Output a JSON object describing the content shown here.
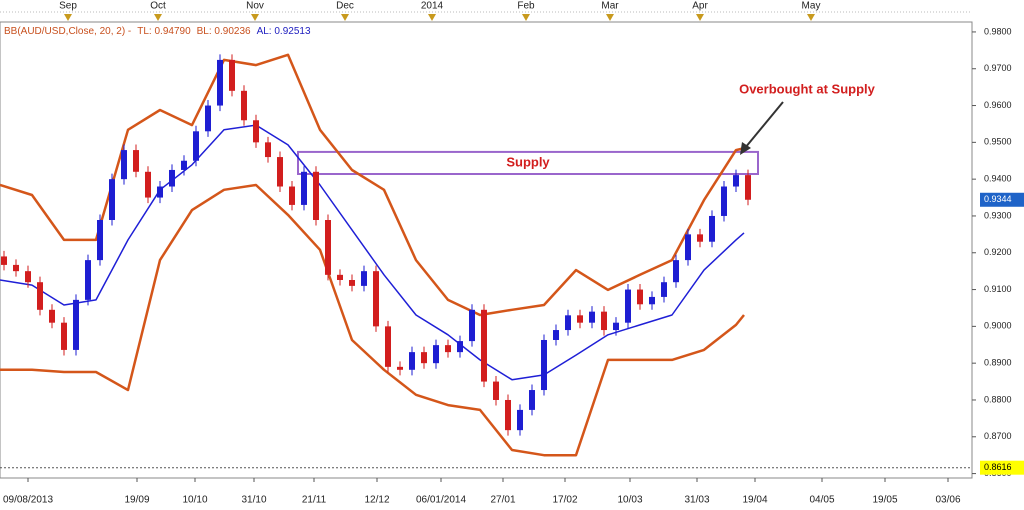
{
  "chart_data": {
    "type": "candlestick",
    "header": [
      {
        "text": "BB(AUD/USD,Close, 20, 2) -",
        "color": "#c8501e"
      },
      {
        "text": "TL: 0.94790",
        "color": "#c8501e"
      },
      {
        "text": "BL: 0.90236",
        "color": "#c8501e"
      },
      {
        "text": "AL: 0.92513",
        "color": "#2020c0"
      }
    ],
    "xlim": [
      0,
      243
    ],
    "ylim": [
      0.8588,
      0.9827
    ],
    "yticks": [
      {
        "value": 0.98,
        "label": "0.9800"
      },
      {
        "value": 0.97,
        "label": "0.9700"
      },
      {
        "value": 0.96,
        "label": "0.9600"
      },
      {
        "value": 0.95,
        "label": "0.9500"
      },
      {
        "value": 0.94,
        "label": "0.9400"
      },
      {
        "value": 0.93,
        "label": "0.9300"
      },
      {
        "value": 0.92,
        "label": "0.9200"
      },
      {
        "value": 0.91,
        "label": "0.9100"
      },
      {
        "value": 0.9,
        "label": "0.9000"
      },
      {
        "value": 0.89,
        "label": "0.8900"
      },
      {
        "value": 0.88,
        "label": "0.8800"
      },
      {
        "value": 0.87,
        "label": "0.8700"
      },
      {
        "value": 0.86,
        "label": "0.8600"
      }
    ],
    "xticks": [
      {
        "value": 7,
        "label": "09/08/2013"
      },
      {
        "value": 34.25,
        "label": "19/09"
      },
      {
        "value": 48.75,
        "label": "10/10"
      },
      {
        "value": 63.5,
        "label": "31/10"
      },
      {
        "value": 78.5,
        "label": "21/11"
      },
      {
        "value": 94.25,
        "label": "12/12"
      },
      {
        "value": 110.25,
        "label": "06/01/2014"
      },
      {
        "value": 125.75,
        "label": "27/01"
      },
      {
        "value": 141.25,
        "label": "17/02"
      },
      {
        "value": 157.5,
        "label": "10/03"
      },
      {
        "value": 174.25,
        "label": "31/03"
      },
      {
        "value": 188.75,
        "label": "19/04"
      },
      {
        "value": 205.5,
        "label": "04/05"
      },
      {
        "value": 221.25,
        "label": "19/05"
      },
      {
        "value": 237,
        "label": "03/06"
      }
    ],
    "top_ticks": [
      {
        "value": 17,
        "label": "Sep"
      },
      {
        "value": 39.5,
        "label": "Oct"
      },
      {
        "value": 63.75,
        "label": "Nov"
      },
      {
        "value": 86.25,
        "label": "Dec"
      },
      {
        "value": 108,
        "label": "2014"
      },
      {
        "value": 131.5,
        "label": "Feb"
      },
      {
        "value": 152.5,
        "label": "Mar"
      },
      {
        "value": 175,
        "label": "Apr"
      },
      {
        "value": 202.75,
        "label": "May"
      }
    ],
    "up_color": "#1e1ed2",
    "down_color": "#d21e1e",
    "x": [
      1,
      4,
      7,
      10,
      13,
      16,
      19,
      22,
      25,
      28,
      31,
      34,
      37,
      40,
      43,
      46,
      49,
      52,
      55,
      58,
      61,
      64,
      67,
      70,
      73,
      76,
      79,
      82,
      85,
      88,
      91,
      94,
      97,
      100,
      103,
      106,
      109,
      112,
      115,
      118,
      121,
      124,
      127,
      130,
      133,
      136,
      139,
      142,
      145,
      148,
      151,
      154,
      157,
      160,
      163,
      166,
      169,
      172,
      175,
      178,
      181,
      184,
      187
    ],
    "open": [
      0.919,
      0.9167,
      0.915,
      0.912,
      0.9045,
      0.901,
      0.8936,
      0.9072,
      0.918,
      0.9289,
      0.94,
      0.9479,
      0.942,
      0.935,
      0.938,
      0.9425,
      0.945,
      0.953,
      0.96,
      0.9724,
      0.964,
      0.956,
      0.95,
      0.946,
      0.938,
      0.933,
      0.942,
      0.9289,
      0.914,
      0.9126,
      0.911,
      0.915,
      0.9,
      0.889,
      0.8882,
      0.893,
      0.89,
      0.8949,
      0.893,
      0.896,
      0.9045,
      0.885,
      0.88,
      0.8718,
      0.8773,
      0.8827,
      0.8963,
      0.899,
      0.903,
      0.901,
      0.904,
      0.899,
      0.901,
      0.91,
      0.906,
      0.908,
      0.912,
      0.918,
      0.925,
      0.923,
      0.93,
      0.938,
      0.9411
    ],
    "high": [
      0.9205,
      0.9182,
      0.9165,
      0.9135,
      0.906,
      0.9025,
      0.9087,
      0.9195,
      0.9304,
      0.9415,
      0.9494,
      0.9494,
      0.9435,
      0.9395,
      0.944,
      0.9465,
      0.9545,
      0.9615,
      0.9739,
      0.9739,
      0.9655,
      0.9575,
      0.9515,
      0.9475,
      0.9395,
      0.9435,
      0.9435,
      0.9304,
      0.9155,
      0.9141,
      0.9165,
      0.9165,
      0.9015,
      0.8905,
      0.8945,
      0.8945,
      0.8964,
      0.8964,
      0.8975,
      0.906,
      0.906,
      0.8865,
      0.8815,
      0.8788,
      0.8842,
      0.8978,
      0.9005,
      0.9045,
      0.9045,
      0.9055,
      0.9055,
      0.9025,
      0.9115,
      0.9115,
      0.9095,
      0.9135,
      0.9195,
      0.9265,
      0.9265,
      0.9315,
      0.9395,
      0.9426,
      0.9426
    ],
    "low": [
      0.9152,
      0.9135,
      0.9105,
      0.903,
      0.8995,
      0.8921,
      0.8921,
      0.9057,
      0.9165,
      0.9274,
      0.9385,
      0.9405,
      0.9335,
      0.9335,
      0.9365,
      0.941,
      0.9435,
      0.9515,
      0.9585,
      0.9625,
      0.9545,
      0.9485,
      0.9445,
      0.9365,
      0.9315,
      0.9315,
      0.9274,
      0.9125,
      0.9111,
      0.9095,
      0.9095,
      0.8985,
      0.8875,
      0.8867,
      0.8867,
      0.8885,
      0.8885,
      0.8915,
      0.8915,
      0.8945,
      0.8835,
      0.8785,
      0.8703,
      0.8703,
      0.8758,
      0.8812,
      0.8948,
      0.8975,
      0.8995,
      0.8995,
      0.8975,
      0.8975,
      0.8995,
      0.9045,
      0.9045,
      0.9065,
      0.9105,
      0.9165,
      0.9215,
      0.9215,
      0.9285,
      0.9365,
      0.9329
    ],
    "close": [
      0.9167,
      0.915,
      0.912,
      0.9045,
      0.901,
      0.8936,
      0.9072,
      0.918,
      0.9289,
      0.94,
      0.9479,
      0.942,
      0.935,
      0.938,
      0.9425,
      0.945,
      0.953,
      0.96,
      0.9724,
      0.964,
      0.956,
      0.95,
      0.946,
      0.938,
      0.933,
      0.942,
      0.9289,
      0.914,
      0.9126,
      0.911,
      0.915,
      0.9,
      0.889,
      0.8882,
      0.893,
      0.89,
      0.8949,
      0.893,
      0.896,
      0.9045,
      0.885,
      0.88,
      0.8718,
      0.8773,
      0.8827,
      0.8963,
      0.899,
      0.903,
      0.901,
      0.904,
      0.899,
      0.901,
      0.91,
      0.906,
      0.908,
      0.912,
      0.918,
      0.925,
      0.923,
      0.93,
      0.938,
      0.9411,
      0.9344
    ],
    "bands": {
      "x": [
        0,
        8,
        16,
        24,
        32,
        40,
        48,
        56,
        64,
        72,
        80,
        88,
        96,
        104,
        112,
        120,
        128,
        136,
        144,
        152,
        160,
        168,
        176,
        184,
        186
      ],
      "upper": [
        0.9384,
        0.9357,
        0.9235,
        0.9235,
        0.9534,
        0.9588,
        0.9547,
        0.9724,
        0.971,
        0.9738,
        0.9534,
        0.9425,
        0.9371,
        0.918,
        0.9072,
        0.9031,
        0.9045,
        0.9058,
        0.9153,
        0.9099,
        0.914,
        0.918,
        0.9343,
        0.9479,
        0.9484
      ],
      "middle": [
        0.9126,
        0.9112,
        0.9058,
        0.9072,
        0.9235,
        0.9371,
        0.9439,
        0.9534,
        0.9547,
        0.9493,
        0.9384,
        0.9262,
        0.914,
        0.9031,
        0.8977,
        0.8909,
        0.8855,
        0.8868,
        0.8922,
        0.8977,
        0.9004,
        0.9031,
        0.9153,
        0.9235,
        0.9254
      ],
      "lower": [
        0.8882,
        0.8882,
        0.8876,
        0.8876,
        0.8827,
        0.918,
        0.9316,
        0.9371,
        0.9384,
        0.9303,
        0.9208,
        0.8963,
        0.8882,
        0.8814,
        0.8786,
        0.8773,
        0.8664,
        0.865,
        0.865,
        0.8909,
        0.8909,
        0.8909,
        0.8936,
        0.9004,
        0.9031
      ],
      "outer_color": "#d4561a",
      "middle_color": "#1f1fd6"
    },
    "zones": [
      {
        "label": "Supply",
        "x": [
          74.5,
          189.5
        ],
        "y": [
          0.9414,
          0.9474
        ],
        "color": "#9a66cc",
        "label_color": "#d21e1e"
      }
    ],
    "annotation": "Overbought at Supply",
    "price_tags": [
      {
        "value": 0.9344,
        "color": "#1e63c8",
        "text_color": "#ffffff",
        "line": false
      },
      {
        "value": 0.8616,
        "color": "#ffff00",
        "text_color": "#000000",
        "line": true
      }
    ]
  }
}
